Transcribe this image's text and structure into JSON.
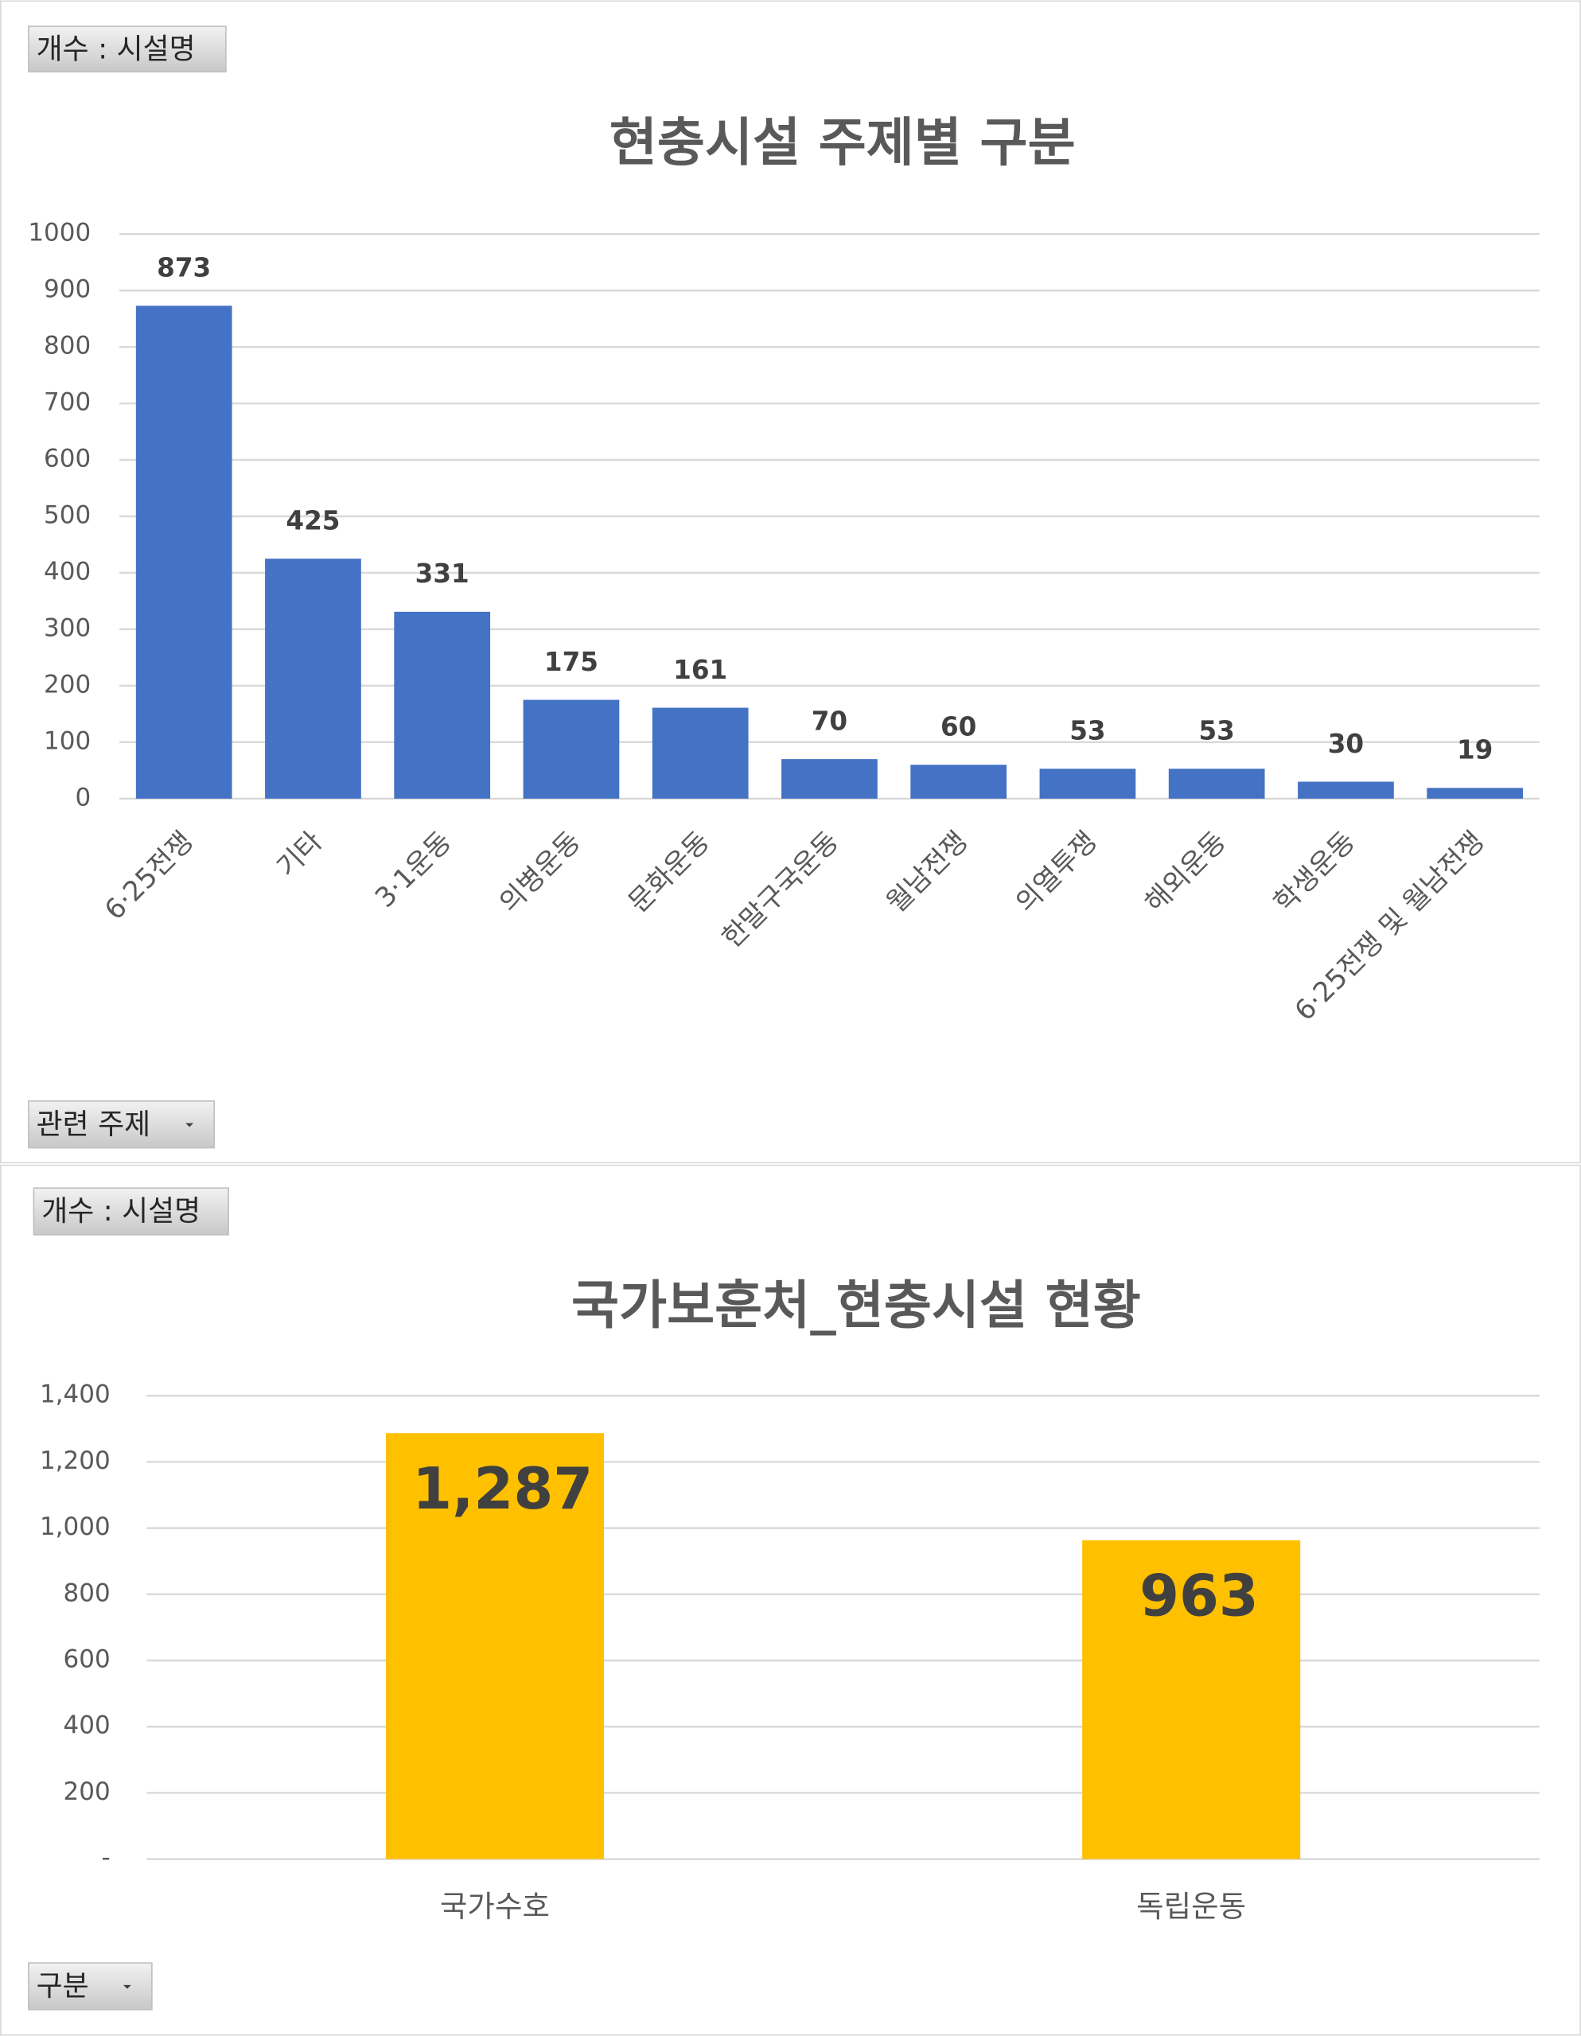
{
  "chart_data": [
    {
      "type": "bar",
      "title": "현충시설 주제별 구분",
      "value_field": "개수 : 시설명",
      "axis_field": "관련 주제",
      "categories": [
        "6·25전쟁",
        "기타",
        "3·1운동",
        "의병운동",
        "문화운동",
        "한말구국운동",
        "월남전쟁",
        "의열투쟁",
        "해외운동",
        "학생운동",
        "6·25전쟁 및 월남전쟁"
      ],
      "values": [
        873,
        425,
        331,
        175,
        161,
        70,
        60,
        53,
        53,
        30,
        19
      ],
      "color": "#4472c4",
      "ylim": [
        0,
        1000
      ],
      "yticks": [
        0,
        100,
        200,
        300,
        400,
        500,
        600,
        700,
        800,
        900,
        1000
      ],
      "grid": true
    },
    {
      "type": "bar",
      "title": "국가보훈처_현충시설 현황",
      "value_field": "개수 : 시설명",
      "axis_field": "구분",
      "categories": [
        "국가수호",
        "독립운동"
      ],
      "values": [
        1287,
        963
      ],
      "value_labels": [
        "1,287",
        "963"
      ],
      "color": "#ffc000",
      "ylim": [
        0,
        1400
      ],
      "yticks": [
        {
          "value": 0,
          "label": "-"
        },
        {
          "value": 200,
          "label": "200"
        },
        {
          "value": 400,
          "label": "400"
        },
        {
          "value": 600,
          "label": "600"
        },
        {
          "value": 800,
          "label": "800"
        },
        {
          "value": 1000,
          "label": "1,000"
        },
        {
          "value": 1200,
          "label": "1,200"
        },
        {
          "value": 1400,
          "label": "1,400"
        }
      ],
      "grid": true
    }
  ]
}
